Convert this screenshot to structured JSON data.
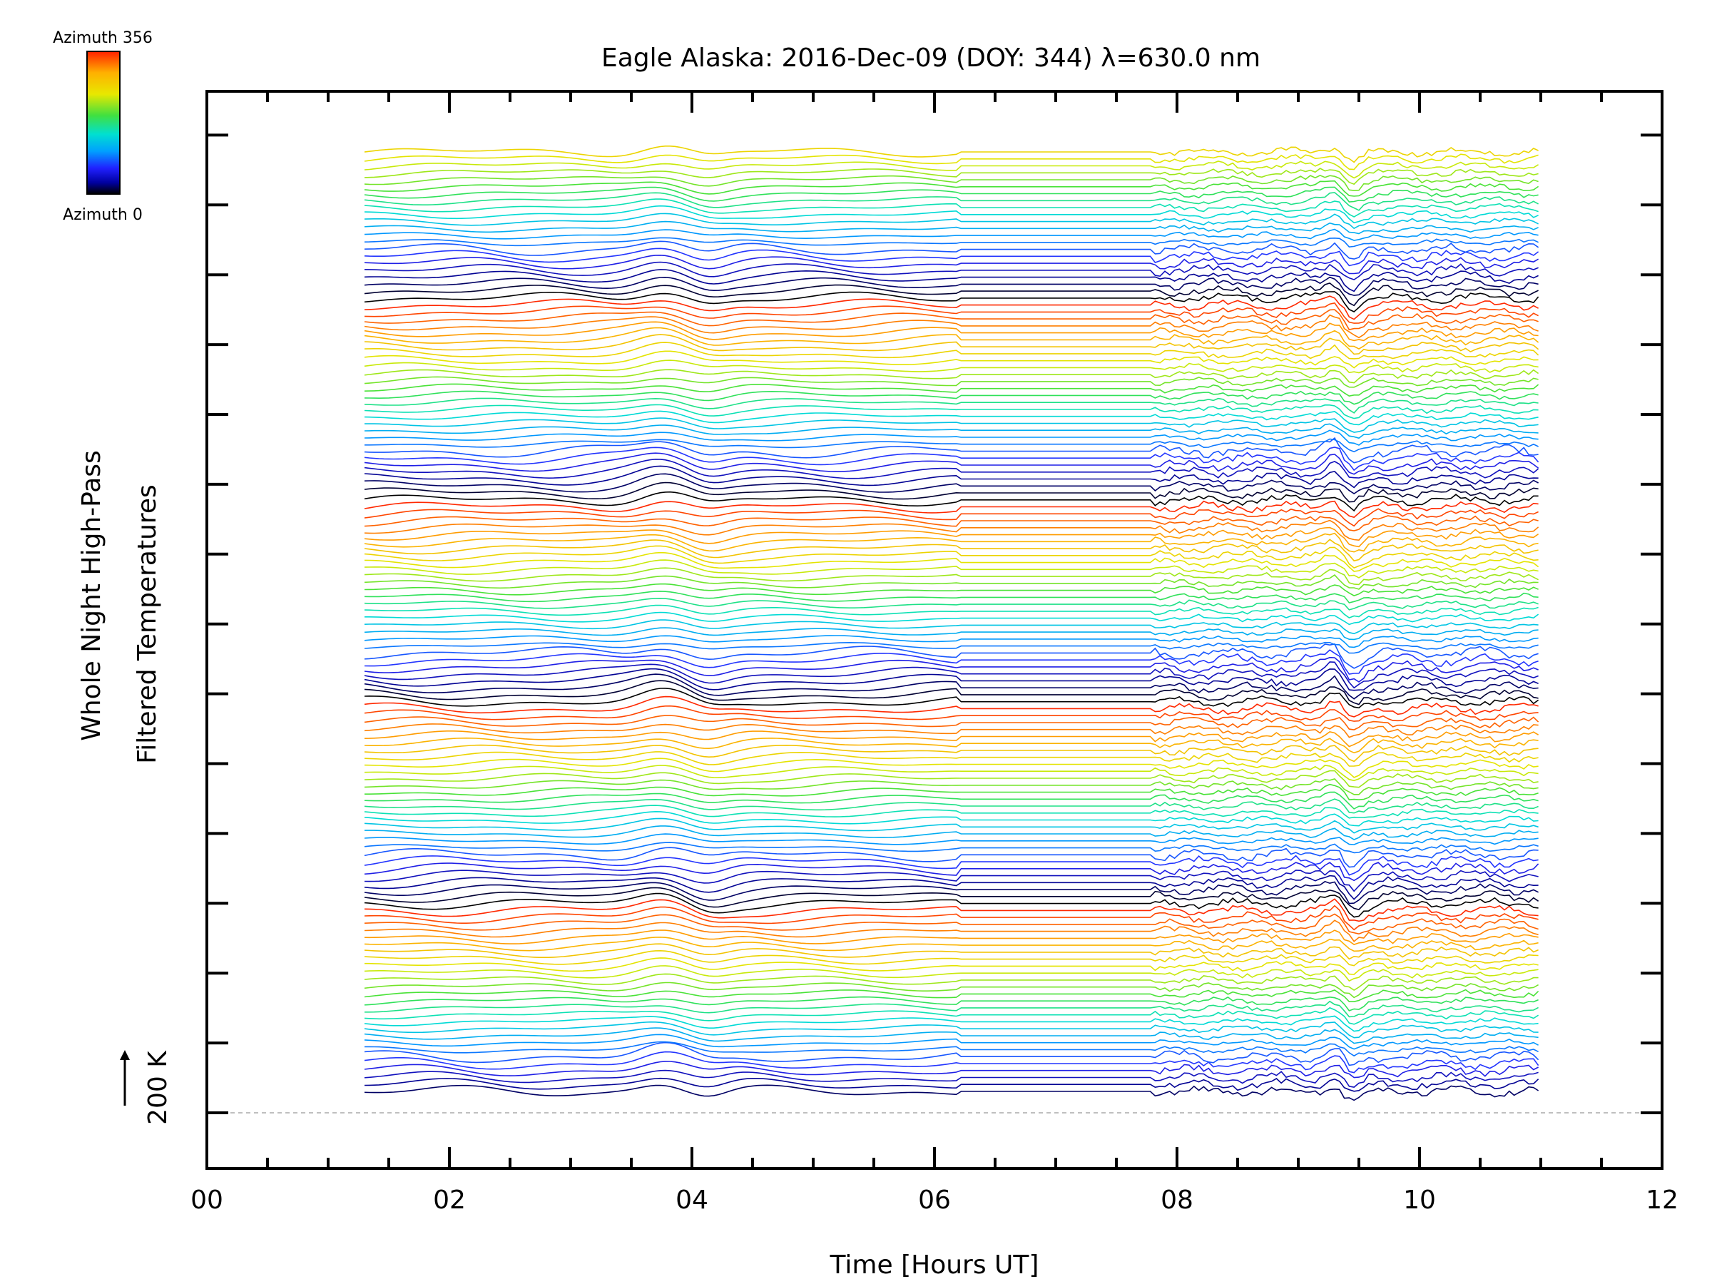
{
  "chart_data": {
    "type": "line",
    "title": "Eagle Alaska: 2016-Dec-09 (DOY: 344) λ=630.0 nm",
    "xlabel": "Time [Hours UT]",
    "ylabel_line1": "Whole Night High-Pass",
    "ylabel_line2": "Filtered Temperatures",
    "scale_label": "200 K",
    "xlim": [
      0,
      12
    ],
    "xticks": [
      "00",
      "02",
      "04",
      "06",
      "08",
      "10",
      "12"
    ],
    "colorbar": {
      "top_label": "Azimuth 356",
      "bottom_label": "Azimuth 0",
      "colors": [
        "#ff2000",
        "#ffb000",
        "#e8e800",
        "#40e040",
        "#00e0d0",
        "#00a0ff",
        "#2020ff",
        "#0000a0",
        "#000000"
      ]
    },
    "time_range": [
      1.3,
      11.0
    ],
    "gap": [
      6.2,
      7.8
    ],
    "trace_count": 136,
    "band_size": 29,
    "grid": false,
    "legend": "colorbar top-left",
    "colors": {
      "baseline": "#aaaaaa",
      "axes": "#000000"
    }
  }
}
